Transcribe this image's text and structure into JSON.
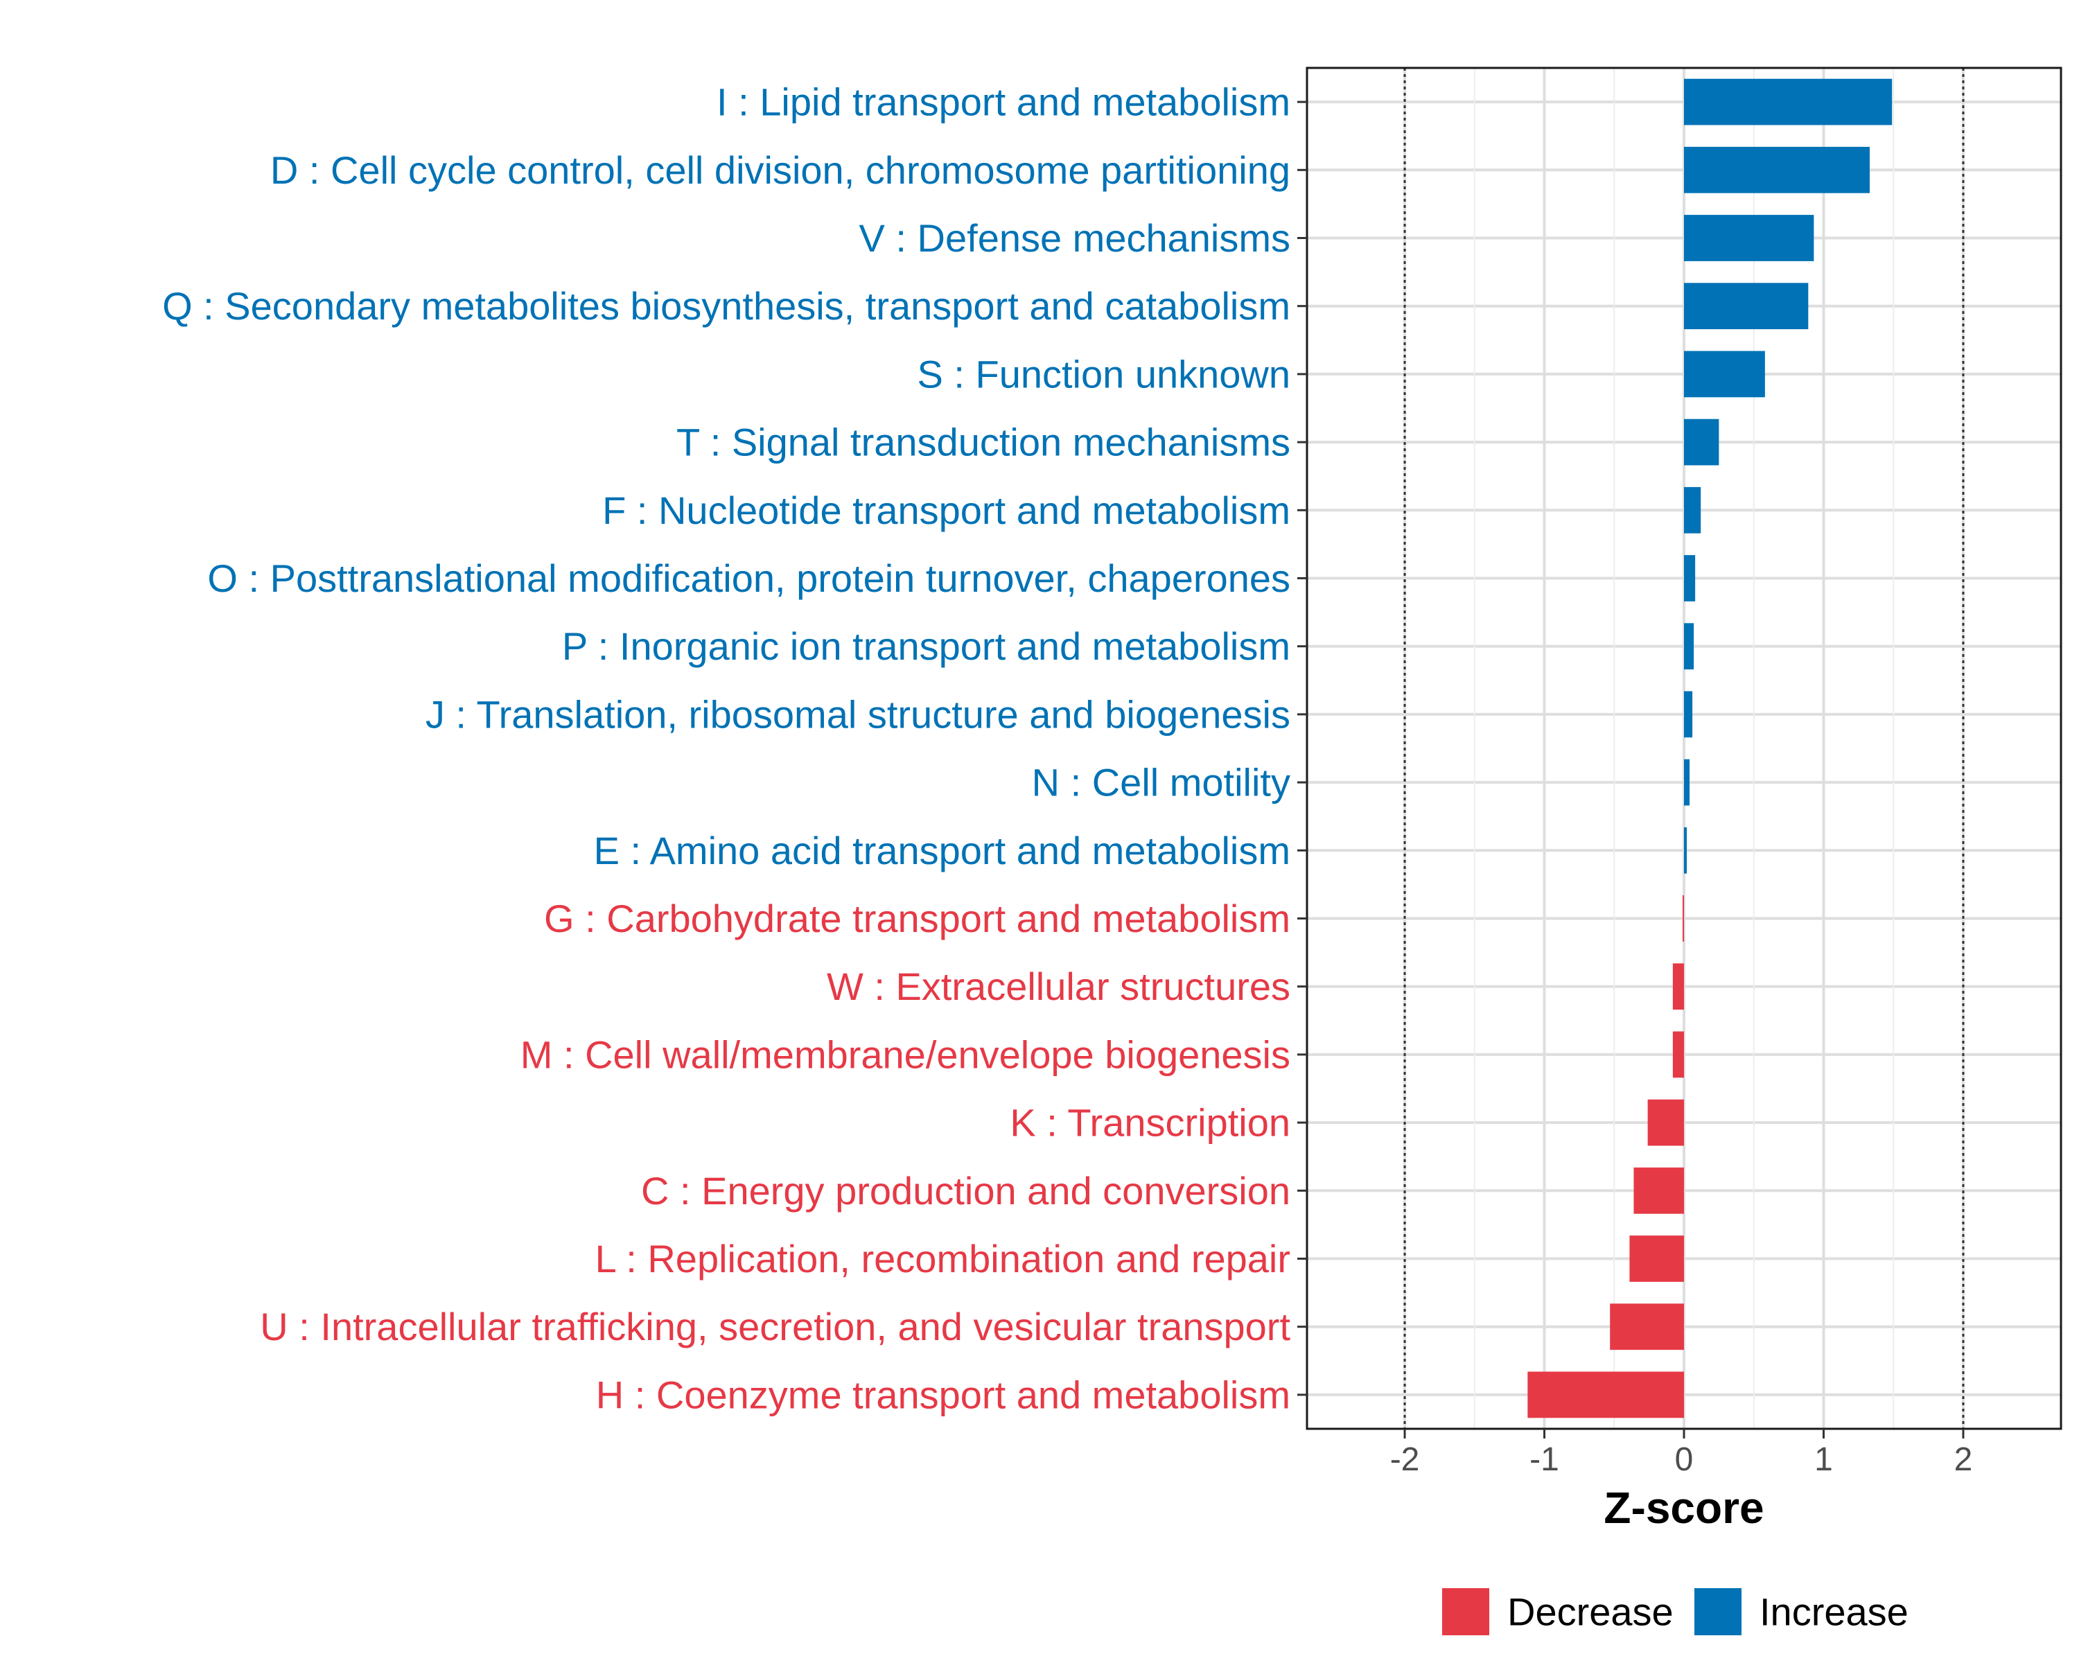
{
  "chart_data": {
    "type": "bar",
    "orientation": "horizontal",
    "xlabel": "Z-score",
    "xlim": [
      -2.7,
      2.7
    ],
    "xticks": [
      -2,
      -1,
      0,
      1,
      2
    ],
    "xtick_labels": [
      "-2",
      "-1",
      "0",
      "1",
      "2"
    ],
    "reference_lines": [
      -2,
      2
    ],
    "grid": true,
    "colors": {
      "Increase": "#0072b5",
      "Decrease": "#e63946"
    },
    "categories": [
      "I : Lipid transport and metabolism",
      "D : Cell cycle control, cell division, chromosome partitioning",
      "V : Defense mechanisms",
      "Q : Secondary metabolites biosynthesis, transport and catabolism",
      "S : Function unknown",
      "T : Signal transduction mechanisms",
      "F : Nucleotide transport and metabolism",
      "O : Posttranslational modification, protein turnover, chaperones",
      "P : Inorganic ion transport and metabolism",
      "J : Translation, ribosomal structure and biogenesis",
      "N : Cell motility",
      "E : Amino acid transport and metabolism",
      "G : Carbohydrate transport and metabolism",
      "W : Extracellular structures",
      "M : Cell wall/membrane/envelope biogenesis",
      "K : Transcription",
      "C : Energy production and conversion",
      "L : Replication, recombination and repair",
      "U : Intracellular trafficking, secretion, and vesicular transport",
      "H : Coenzyme transport and metabolism"
    ],
    "values": [
      1.49,
      1.33,
      0.93,
      0.89,
      0.58,
      0.25,
      0.12,
      0.08,
      0.07,
      0.06,
      0.04,
      0.02,
      -0.01,
      -0.08,
      -0.08,
      -0.26,
      -0.36,
      -0.39,
      -0.53,
      -1.12
    ],
    "groups": [
      "Increase",
      "Increase",
      "Increase",
      "Increase",
      "Increase",
      "Increase",
      "Increase",
      "Increase",
      "Increase",
      "Increase",
      "Increase",
      "Increase",
      "Decrease",
      "Decrease",
      "Decrease",
      "Decrease",
      "Decrease",
      "Decrease",
      "Decrease",
      "Decrease"
    ],
    "legend": {
      "position": "bottom",
      "entries": [
        "Decrease",
        "Increase"
      ]
    }
  }
}
